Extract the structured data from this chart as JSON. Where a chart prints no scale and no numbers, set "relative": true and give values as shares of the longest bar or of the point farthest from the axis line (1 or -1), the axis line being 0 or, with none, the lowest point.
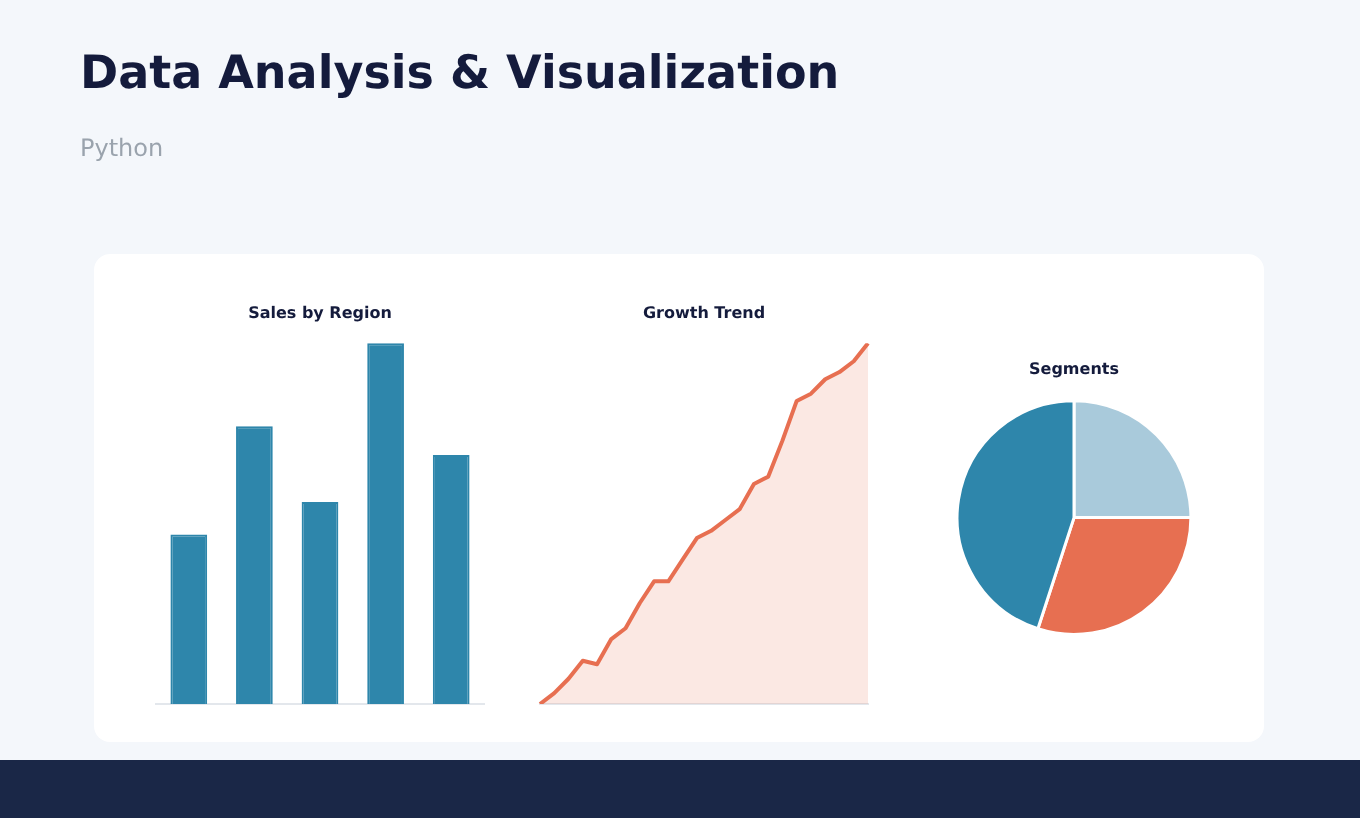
{
  "chart_data": [
    {
      "type": "other",
      "title": "Data Analysis & Visualization",
      "subtitle": "Python"
    },
    {
      "type": "bar",
      "title": "Sales by Region",
      "categories": [
        null,
        null,
        null,
        null,
        null
      ],
      "values": [
        0.47,
        0.77,
        0.56,
        1,
        0.69
      ],
      "color": "#2e86ab",
      "relative": true
    },
    {
      "type": "area",
      "title": "Growth Trend",
      "categories": [
        null,
        null,
        null,
        null,
        null,
        null,
        null,
        null,
        null,
        null,
        null,
        null,
        null,
        null,
        null,
        null,
        null,
        null,
        null,
        null,
        null,
        null,
        null,
        null
      ],
      "values": [
        0,
        0.03,
        0.07,
        0.12,
        0.11,
        0.18,
        0.21,
        0.28,
        0.34,
        0.34,
        0.4,
        0.46,
        0.48,
        0.51,
        0.54,
        0.61,
        0.63,
        0.73,
        0.84,
        0.86,
        0.9,
        0.92,
        0.95,
        1
      ],
      "color": "#e76f51",
      "relative": true
    },
    {
      "type": "pie",
      "title": "Segments",
      "categories": [
        null,
        null,
        null
      ],
      "values": [
        25,
        30,
        45
      ],
      "colors": [
        "#a9cadb",
        "#e76f51",
        "#2e86ab"
      ]
    }
  ]
}
